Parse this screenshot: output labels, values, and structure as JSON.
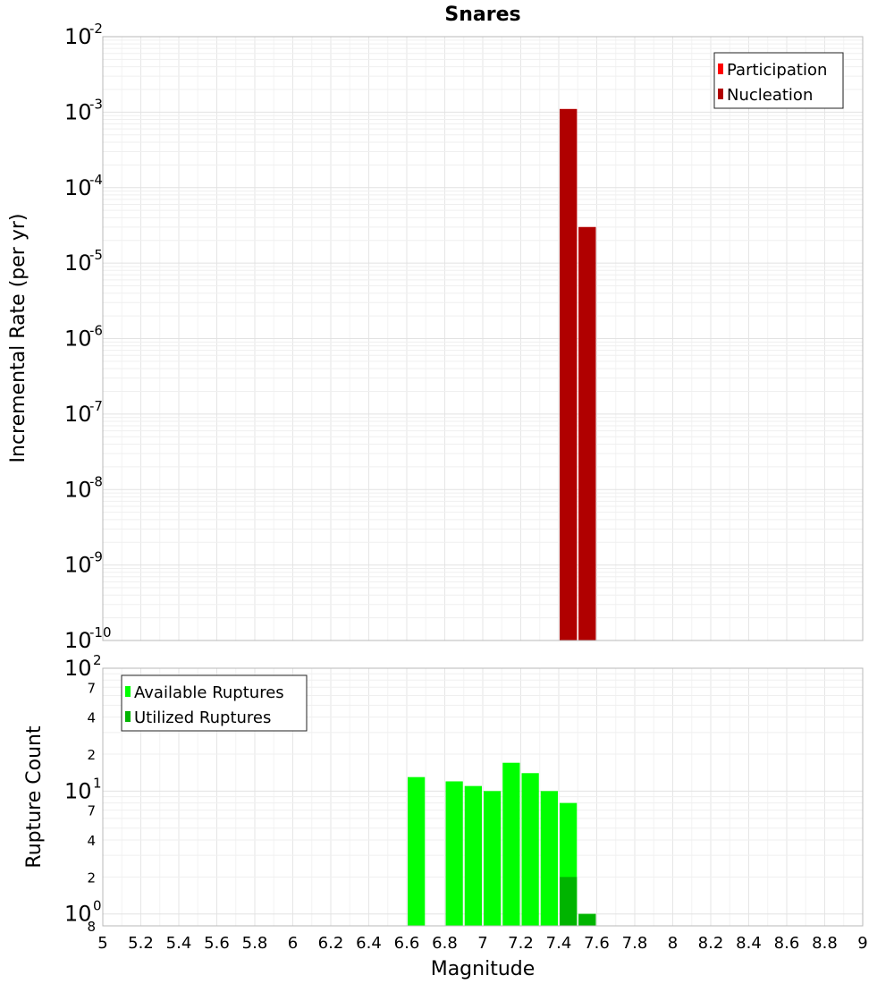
{
  "chart_data": [
    {
      "type": "bar",
      "title": "Snares",
      "xlabel": "",
      "ylabel": "Incremental Rate (per yr)",
      "yscale": "log",
      "xlim": [
        5,
        9
      ],
      "ylim": [
        1e-10,
        0.01
      ],
      "ytick_labels": [
        "10-2",
        "10-3",
        "10-4",
        "10-5",
        "10-6",
        "10-7",
        "10-8",
        "10-9",
        "10-10"
      ],
      "grid": true,
      "legend_position": "top-right",
      "legend": [
        {
          "label": "Participation",
          "color": "#ff0000"
        },
        {
          "label": "Nucleation",
          "color": "#b00000"
        }
      ],
      "series": [
        {
          "name": "Participation",
          "color": "#ff0000",
          "x": [
            7.45,
            7.55
          ],
          "values": [
            0.0011,
            3e-05
          ]
        },
        {
          "name": "Nucleation",
          "color": "#b00000",
          "x": [
            7.45,
            7.55
          ],
          "values": [
            0.0011,
            3e-05
          ]
        }
      ],
      "bar_width": 0.1
    },
    {
      "type": "bar",
      "title": "",
      "xlabel": "Magnitude",
      "ylabel": "Rupture Count",
      "yscale": "log",
      "xlim": [
        5,
        9
      ],
      "ylim": [
        0.8,
        100
      ],
      "xtick_labels": [
        "5",
        "5.2",
        "5.4",
        "5.6",
        "5.8",
        "6",
        "6.2",
        "6.4",
        "6.6",
        "6.8",
        "7",
        "7.2",
        "7.4",
        "7.6",
        "7.8",
        "8",
        "8.2",
        "8.4",
        "8.6",
        "8.8",
        "9"
      ],
      "ytick_labels": [
        "10 2",
        "7",
        "4",
        "2",
        "10 1",
        "7",
        "4",
        "2",
        "10 0",
        "8"
      ],
      "grid": true,
      "legend_position": "top-left",
      "legend": [
        {
          "label": "Available Ruptures",
          "color": "#00ff00"
        },
        {
          "label": "Utilized Ruptures",
          "color": "#00b400"
        }
      ],
      "series": [
        {
          "name": "Available Ruptures",
          "color": "#00ff00",
          "x": [
            6.65,
            6.85,
            6.95,
            7.05,
            7.15,
            7.25,
            7.35,
            7.45,
            7.55
          ],
          "values": [
            13,
            12,
            11,
            10,
            17,
            14,
            10,
            8,
            1
          ]
        },
        {
          "name": "Utilized Ruptures",
          "color": "#00b400",
          "x": [
            7.45,
            7.55
          ],
          "values": [
            2,
            1
          ]
        }
      ],
      "bar_width": 0.1
    }
  ]
}
